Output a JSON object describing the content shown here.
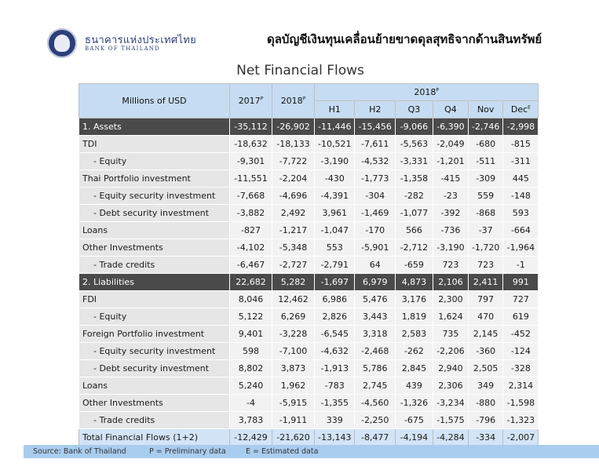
{
  "header": {
    "bank_name_thai": "ธนาคารแห่งประเทศไทย",
    "bank_name_en": "BANK OF THAILAND",
    "thai_title": "ดุลบัญชีเงินทุนเคลื่อนย้ายขาดดุลสุทธิจากด้านสินทรัพย์",
    "title": "Net Financial Flows"
  },
  "table": {
    "unit_label": "Millions of USD",
    "col_2017": "2017",
    "col_2018": "2018",
    "group_2018": "2018",
    "sup_p": "P",
    "sup_e": "E",
    "sub_cols": [
      "H1",
      "H2",
      "Q3",
      "Q4",
      "Nov",
      "Dec"
    ],
    "rows": [
      {
        "label": "1. Assets",
        "values": [
          "-35,112",
          "-26,902",
          "-11,446",
          "-15,456",
          "-9,066",
          "-6,390",
          "-2,746",
          "-2,998"
        ]
      },
      {
        "label": "TDI",
        "values": [
          "-18,632",
          "-18,133",
          "-10,521",
          "-7,611",
          "-5,563",
          "-2,049",
          "-680",
          "-815"
        ]
      },
      {
        "label": "- Equity",
        "values": [
          "-9,301",
          "-7,722",
          "-3,190",
          "-4,532",
          "-3,331",
          "-1,201",
          "-511",
          "-311"
        ]
      },
      {
        "label": "Thai Portfolio investment",
        "values": [
          "-11,551",
          "-2,204",
          "-430",
          "-1,773",
          "-1,358",
          "-415",
          "-309",
          "445"
        ]
      },
      {
        "label": "- Equity security investment",
        "values": [
          "-7,668",
          "-4,696",
          "-4,391",
          "-304",
          "-282",
          "-23",
          "559",
          "-148"
        ]
      },
      {
        "label": "- Debt security investment",
        "values": [
          "-3,882",
          "2,492",
          "3,961",
          "-1,469",
          "-1,077",
          "-392",
          "-868",
          "593"
        ]
      },
      {
        "label": "Loans",
        "values": [
          "-827",
          "-1,217",
          "-1,047",
          "-170",
          "566",
          "-736",
          "-37",
          "-664"
        ]
      },
      {
        "label": "Other Investments",
        "values": [
          "-4,102",
          "-5,348",
          "553",
          "-5,901",
          "-2,712",
          "-3,190",
          "-1,720",
          "-1,964"
        ]
      },
      {
        "label": "- Trade credits",
        "values": [
          "-6,467",
          "-2,727",
          "-2,791",
          "64",
          "-659",
          "723",
          "723",
          "-1"
        ]
      },
      {
        "label": "2. Liabilities",
        "values": [
          "22,682",
          "5,282",
          "-1,697",
          "6,979",
          "4,873",
          "2,106",
          "2,411",
          "991"
        ]
      },
      {
        "label": "FDI",
        "values": [
          "8,046",
          "12,462",
          "6,986",
          "5,476",
          "3,176",
          "2,300",
          "797",
          "727"
        ]
      },
      {
        "label": "- Equity",
        "values": [
          "5,122",
          "6,269",
          "2,826",
          "3,443",
          "1,819",
          "1,624",
          "470",
          "619"
        ]
      },
      {
        "label": "Foreign Portfolio investment",
        "values": [
          "9,401",
          "-3,228",
          "-6,545",
          "3,318",
          "2,583",
          "735",
          "2,145",
          "-452"
        ]
      },
      {
        "label": "- Equity security investment",
        "values": [
          "598",
          "-7,100",
          "-4,632",
          "-2,468",
          "-262",
          "-2,206",
          "-360",
          "-124"
        ]
      },
      {
        "label": "- Debt security investment",
        "values": [
          "8,802",
          "3,873",
          "-1,913",
          "5,786",
          "2,845",
          "2,940",
          "2,505",
          "-328"
        ]
      },
      {
        "label": "Loans",
        "values": [
          "5,240",
          "1,962",
          "-783",
          "2,745",
          "439",
          "2,306",
          "349",
          "2,314"
        ]
      },
      {
        "label": "Other Investments",
        "values": [
          "-4",
          "-5,915",
          "-1,355",
          "-4,560",
          "-1,326",
          "-3,234",
          "-880",
          "-1,598"
        ]
      },
      {
        "label": "- Trade credits",
        "values": [
          "3,783",
          "-1,911",
          "339",
          "-2,250",
          "-675",
          "-1,575",
          "-796",
          "-1,323"
        ]
      },
      {
        "label": "Total Financial Flows (1+2)",
        "values": [
          "-12,429",
          "-21,620",
          "-13,143",
          "-8,477",
          "-4,194",
          "-4,284",
          "-334",
          "-2,007"
        ]
      }
    ]
  },
  "footer": {
    "source": "Source: Bank of Thailand",
    "note_p": "P = Preliminary data",
    "note_e": "E = Estimated data"
  }
}
